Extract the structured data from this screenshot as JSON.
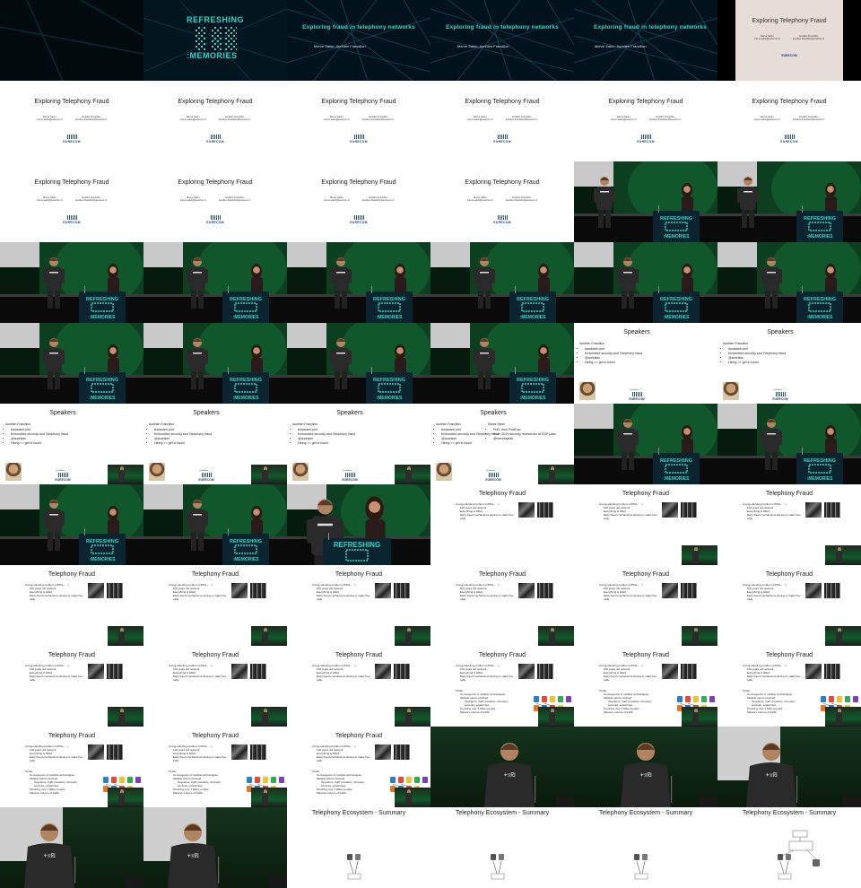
{
  "banner": {
    "title": "Exploring fraud in telephony networks",
    "authors": "Merve Sahin, Aurélien Francillon"
  },
  "conference_logo": {
    "line1": "REFRESHING",
    "line3": ":MEMORIES"
  },
  "title_slide": {
    "title": "Exploring Telephony Fraud",
    "author1_name": "Merve Sahin",
    "author1_email": "merve.sahin@eurecom.fr",
    "author2_name": "Aurélien Francillon",
    "author2_email": "aurelien.francillon@eurecom.fr",
    "logo_text": "EURECOM"
  },
  "speakers_slide": {
    "title": "Speakers",
    "name": "Aurélien Francillon",
    "bullets": [
      "Assistant prof",
      "Embedded security and Telephony fraud",
      "@aurelsec",
      "Hiring => get in touch"
    ],
    "handle": "@aurelsec",
    "name2": "Merve Sahin",
    "bullets2": [
      "PhD, then PostDoc",
      "From 2019 security researcher at SAP Labs",
      "@mervesahin"
    ],
    "logo_text": "EURECOM"
  },
  "telephony_fraud_slide": {
    "title": "Telephony Fraud",
    "bullet1": "A long-standing problem (1970s - ...)",
    "sub1": "100 years old network",
    "sub2": "Everything is billed",
    "sub3": "Early fraud mechanisms aiming to make free calls",
    "today": "Today:",
    "today_sub1": "Convergence of multiple technologies",
    "today_sub2": "Multiple actors involved",
    "today_sub3": "Operators, VoIP providers, 3rd party services, enterprises",
    "today_sub4": "Touching over 7 billion people",
    "today_sub5": "Massive volume of traffic"
  },
  "ecosystem_slide": {
    "title": "Telephony Ecosystem - Summary"
  },
  "colors": {
    "banner_teal": "#27e0c8",
    "background": "#000000",
    "stage_green": "#0f5a2a",
    "eurecom_blue": "#203c7a"
  }
}
